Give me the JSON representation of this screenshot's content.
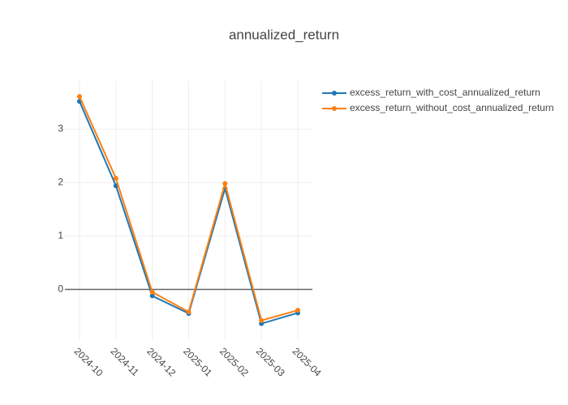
{
  "chart_data": {
    "type": "line",
    "title": "annualized_return",
    "categories": [
      "2024-10",
      "2024-11",
      "2024-12",
      "2025-01",
      "2025-02",
      "2025-03",
      "2025-04"
    ],
    "series": [
      {
        "name": "excess_return_with_cost_annualized_return",
        "color": "#1f77b4",
        "values": [
          3.52,
          1.94,
          -0.12,
          -0.45,
          1.89,
          -0.64,
          -0.44
        ]
      },
      {
        "name": "excess_return_without_cost_annualized_return",
        "color": "#ff7f0e",
        "values": [
          3.61,
          2.08,
          -0.05,
          -0.42,
          1.98,
          -0.58,
          -0.39
        ]
      }
    ],
    "ylim": [
      -0.95,
      3.9
    ],
    "yticks": [
      0,
      1,
      2,
      3
    ],
    "grid": true,
    "zeroline": true,
    "legend": "top-right"
  }
}
